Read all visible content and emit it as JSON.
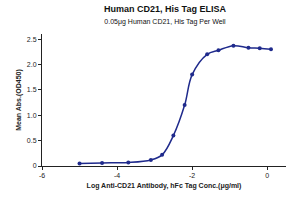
{
  "chart_data": {
    "type": "line",
    "title": "Human CD21, His Tag ELISA",
    "subtitle": "0.05μg Human CD21, His Tag Per Well",
    "x_label": "Log Anti-CD21 Antibody, hFc Tag Conc.(μg/ml)",
    "y_label": "Mean Abs.(OD450)",
    "x": [
      -5.0,
      -4.4,
      -3.7,
      -3.1,
      -2.8,
      -2.5,
      -2.2,
      -2.0,
      -1.6,
      -1.3,
      -0.9,
      -0.5,
      -0.2,
      0.1
    ],
    "values": [
      0.05,
      0.06,
      0.07,
      0.12,
      0.22,
      0.6,
      1.2,
      1.8,
      2.2,
      2.28,
      2.37,
      2.33,
      2.32,
      2.3
    ],
    "color": "#1f2a8c",
    "marker": "circle",
    "line_style": "solid",
    "xlim": [
      -6,
      0.5
    ],
    "xticks": [
      -6,
      -4,
      -2,
      0
    ],
    "ylim": [
      0,
      2.6
    ],
    "yticks": [
      0,
      0.5,
      {
        "value": 1,
        "label": "1.0"
      },
      1.5,
      {
        "value": 2,
        "label": "2.0"
      },
      2.5
    ],
    "grid": false
  }
}
